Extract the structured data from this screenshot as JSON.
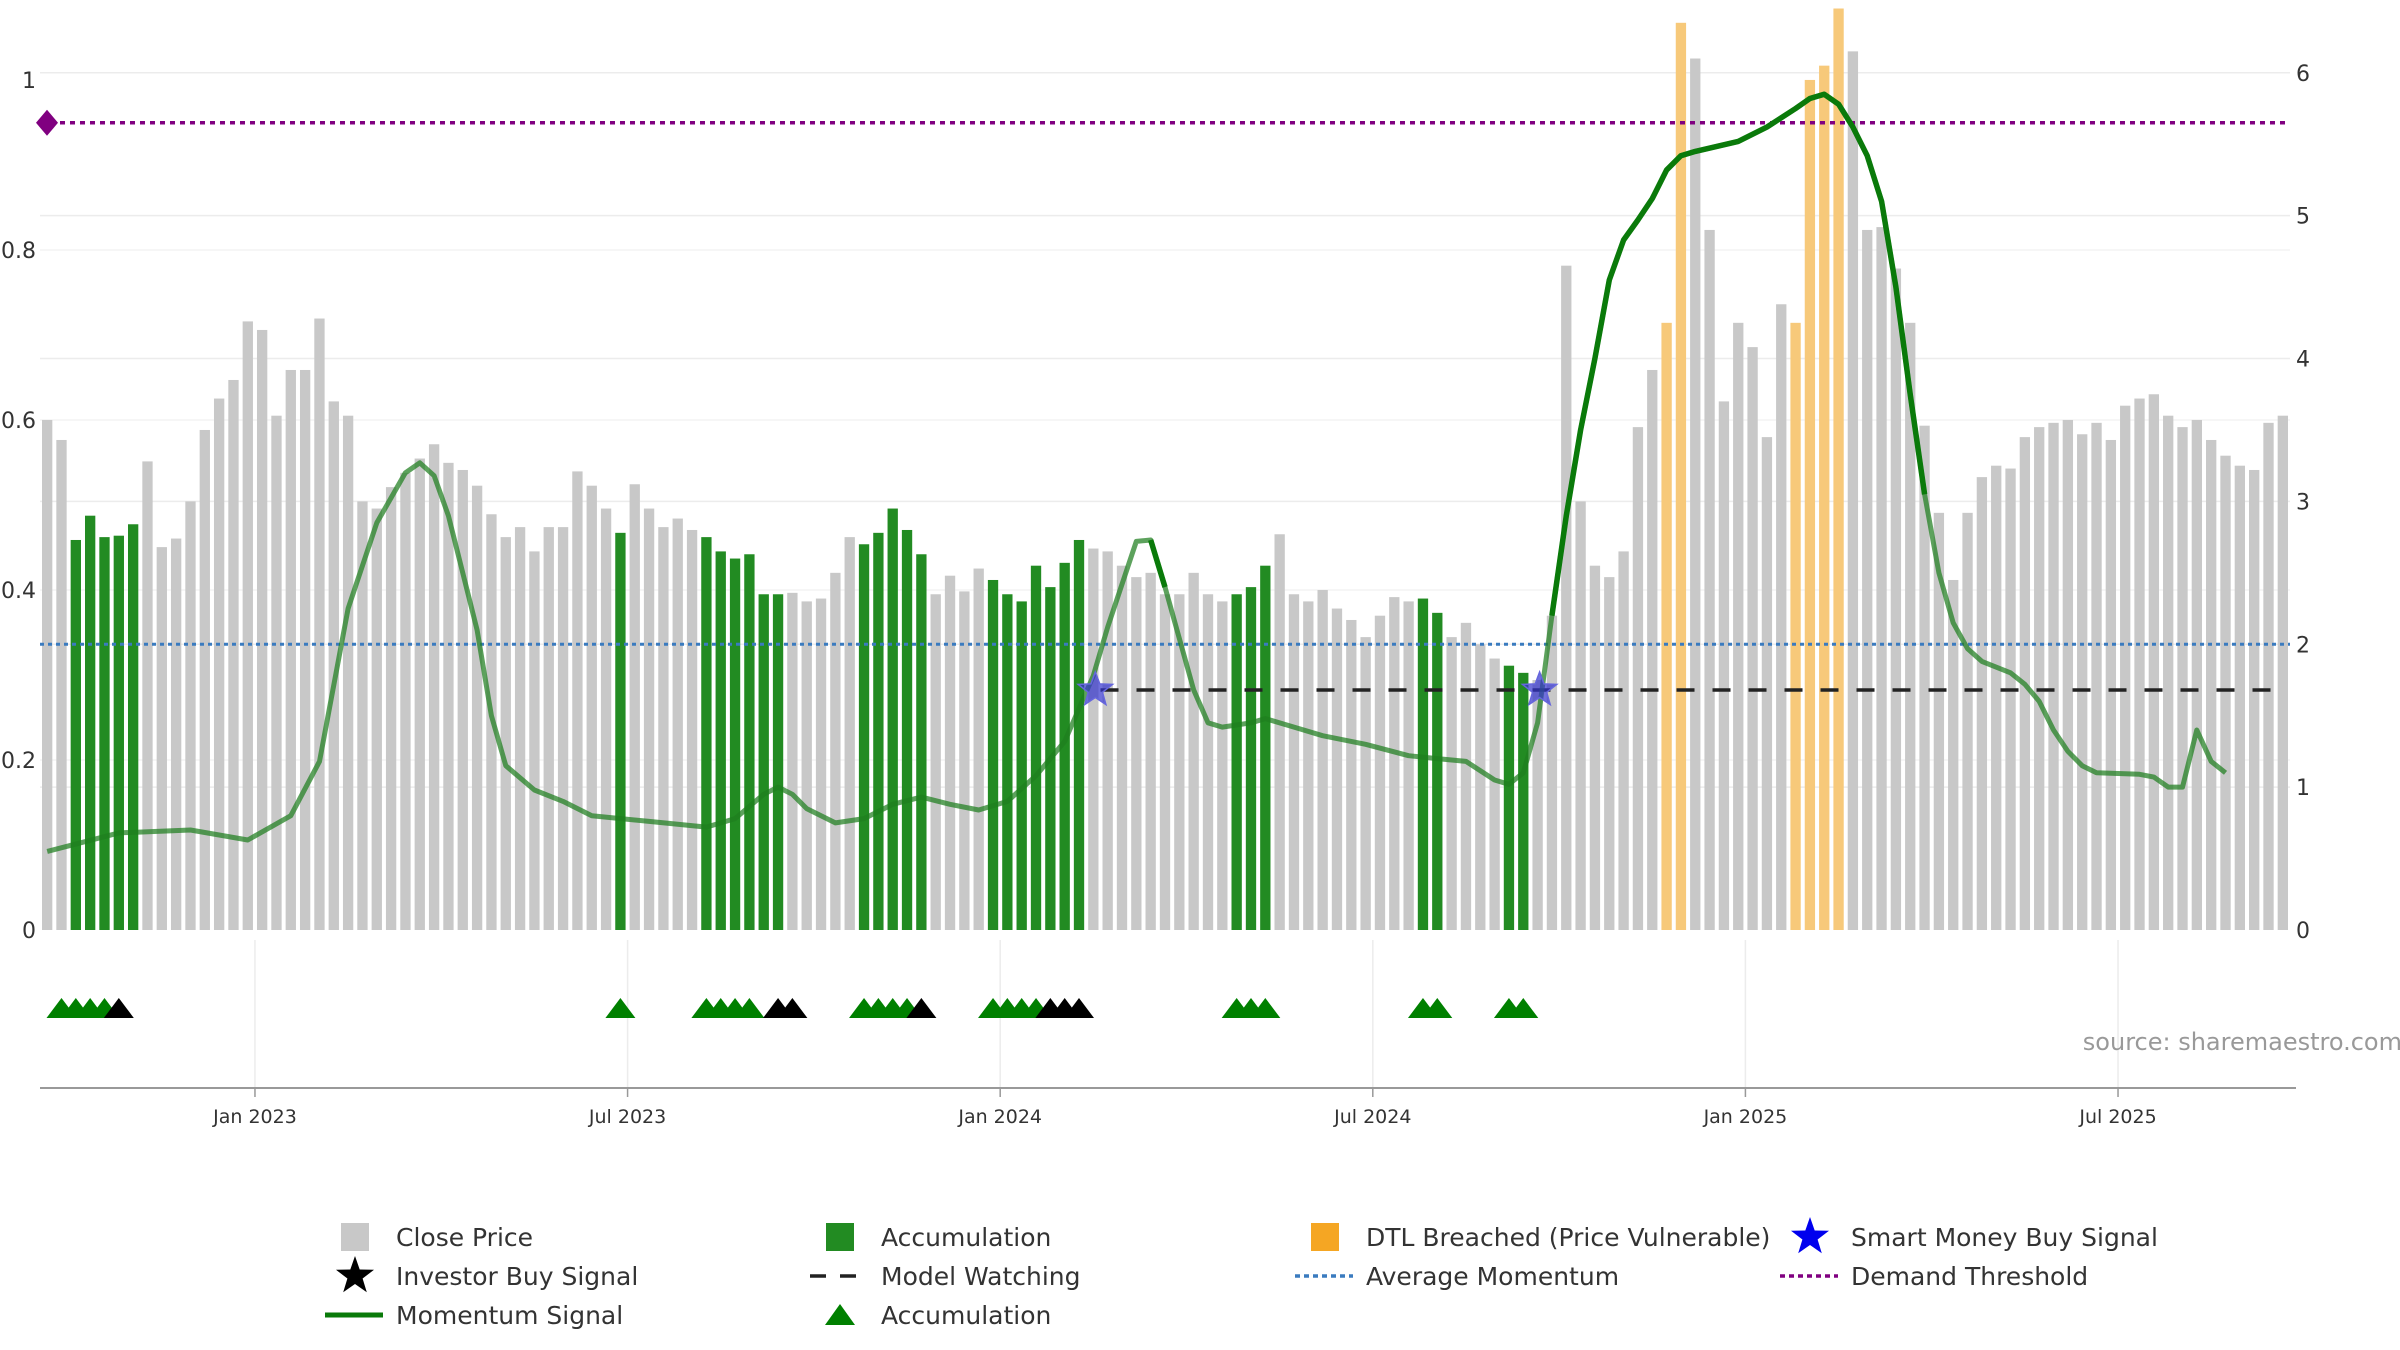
{
  "source_text": "source: sharemaestro.com",
  "chart_data": {
    "type": "bar",
    "left_axis": {
      "range": [
        0,
        1
      ],
      "ticks": [
        "0",
        "0.2",
        "0.4",
        "0.6",
        "0.8",
        "1"
      ]
    },
    "right_axis": {
      "range": [
        0,
        6.8
      ],
      "ticks": [
        "0",
        "1",
        "2",
        "3",
        "4",
        "5",
        "6"
      ]
    },
    "x_ticks": [
      "Jan 2023",
      "Jul 2023",
      "Jan 2024",
      "Jul 2024",
      "Jan 2025",
      "Jul 2025"
    ],
    "x_tick_weeks": [
      14.5,
      40.5,
      66.5,
      92.5,
      118.5,
      144.5
    ],
    "close_price": [
      3.57,
      3.43,
      2.73,
      2.9,
      2.75,
      2.76,
      2.84,
      3.28,
      2.68,
      2.74,
      3.0,
      3.5,
      3.72,
      3.85,
      4.26,
      4.2,
      3.6,
      3.92,
      3.92,
      4.28,
      3.7,
      3.6,
      3.0,
      2.95,
      3.1,
      3.2,
      3.3,
      3.4,
      3.27,
      3.22,
      3.11,
      2.91,
      2.75,
      2.82,
      2.65,
      2.82,
      2.82,
      3.21,
      3.11,
      2.95,
      2.78,
      3.12,
      2.95,
      2.82,
      2.88,
      2.8,
      2.75,
      2.65,
      2.6,
      2.63,
      2.35,
      2.35,
      2.36,
      2.3,
      2.32,
      2.5,
      2.75,
      2.7,
      2.78,
      2.95,
      2.8,
      2.63,
      2.35,
      2.48,
      2.37,
      2.53,
      2.45,
      2.35,
      2.3,
      2.55,
      2.4,
      2.57,
      2.73,
      2.67,
      2.65,
      2.55,
      2.47,
      2.5,
      2.35,
      2.35,
      2.5,
      2.35,
      2.3,
      2.35,
      2.4,
      2.55,
      2.77,
      2.35,
      2.3,
      2.38,
      2.25,
      2.17,
      2.05,
      2.2,
      2.33,
      2.3,
      2.32,
      2.22,
      2.05,
      2.15,
      2.0,
      1.9,
      1.85,
      1.8,
      1.75,
      2.2,
      4.65,
      3.0,
      2.55,
      2.47,
      2.65,
      3.52,
      3.92,
      4.25,
      6.35,
      6.1,
      4.9,
      3.7,
      4.25,
      4.08,
      3.45,
      4.38,
      4.25,
      5.95,
      6.05,
      6.45,
      6.15,
      4.9,
      4.92,
      4.63,
      4.25,
      3.53,
      2.92,
      2.45,
      2.92,
      3.17,
      3.25,
      3.23,
      3.45,
      3.52,
      3.55,
      3.57,
      3.47,
      3.55,
      3.43,
      3.67,
      3.72,
      3.75,
      3.6,
      3.52,
      3.57,
      3.43,
      3.32,
      3.25,
      3.22,
      3.55,
      3.6
    ],
    "accumulation_weeks": [
      2,
      3,
      4,
      5,
      6,
      40,
      46,
      47,
      48,
      49,
      50,
      51,
      57,
      58,
      59,
      60,
      61,
      66,
      67,
      68,
      69,
      70,
      71,
      72,
      83,
      84,
      85,
      96,
      97,
      102,
      103
    ],
    "dtl_breached_weeks": [
      113,
      114,
      122,
      123,
      124,
      125
    ],
    "momentum_signal": [
      [
        0,
        0.55
      ],
      [
        5,
        0.68
      ],
      [
        10,
        0.7
      ],
      [
        14,
        0.63
      ],
      [
        17,
        0.8
      ],
      [
        19,
        1.18
      ],
      [
        21,
        2.25
      ],
      [
        23,
        2.85
      ],
      [
        25,
        3.2
      ],
      [
        26,
        3.27
      ],
      [
        27,
        3.18
      ],
      [
        28,
        2.9
      ],
      [
        30,
        2.1
      ],
      [
        31,
        1.5
      ],
      [
        32,
        1.15
      ],
      [
        34,
        0.98
      ],
      [
        36,
        0.9
      ],
      [
        38,
        0.8
      ],
      [
        42,
        0.76
      ],
      [
        46,
        0.72
      ],
      [
        48,
        0.78
      ],
      [
        50,
        0.95
      ],
      [
        51,
        1.0
      ],
      [
        52,
        0.95
      ],
      [
        53,
        0.85
      ],
      [
        55,
        0.75
      ],
      [
        57,
        0.78
      ],
      [
        59,
        0.88
      ],
      [
        61,
        0.93
      ],
      [
        63,
        0.88
      ],
      [
        65,
        0.84
      ],
      [
        67,
        0.9
      ],
      [
        69,
        1.08
      ],
      [
        71,
        1.32
      ],
      [
        73,
        1.78
      ],
      [
        74,
        2.12
      ],
      [
        76,
        2.72
      ],
      [
        77,
        2.73
      ],
      [
        78,
        2.4
      ],
      [
        80,
        1.68
      ],
      [
        81,
        1.45
      ],
      [
        82,
        1.42
      ],
      [
        84,
        1.45
      ],
      [
        85,
        1.48
      ],
      [
        87,
        1.42
      ],
      [
        89,
        1.36
      ],
      [
        92,
        1.3
      ],
      [
        95,
        1.22
      ],
      [
        97,
        1.2
      ],
      [
        99,
        1.18
      ],
      [
        101,
        1.05
      ],
      [
        102,
        1.02
      ],
      [
        103,
        1.1
      ],
      [
        104,
        1.45
      ],
      [
        105,
        2.2
      ],
      [
        106,
        2.9
      ],
      [
        107,
        3.5
      ],
      [
        108,
        4.0
      ],
      [
        109,
        4.55
      ],
      [
        110,
        4.83
      ],
      [
        111,
        4.97
      ],
      [
        112,
        5.12
      ],
      [
        113,
        5.32
      ],
      [
        114,
        5.42
      ],
      [
        115,
        5.45
      ],
      [
        118,
        5.52
      ],
      [
        120,
        5.62
      ],
      [
        122,
        5.75
      ],
      [
        123,
        5.82
      ],
      [
        124,
        5.85
      ],
      [
        125,
        5.78
      ],
      [
        126,
        5.62
      ],
      [
        127,
        5.42
      ],
      [
        128,
        5.1
      ],
      [
        129,
        4.5
      ],
      [
        130,
        3.75
      ],
      [
        131,
        3.05
      ],
      [
        132,
        2.5
      ],
      [
        133,
        2.15
      ],
      [
        134,
        1.97
      ],
      [
        135,
        1.88
      ],
      [
        137,
        1.8
      ],
      [
        138,
        1.72
      ],
      [
        139,
        1.6
      ],
      [
        140,
        1.4
      ],
      [
        141,
        1.25
      ],
      [
        142,
        1.15
      ],
      [
        143,
        1.1
      ],
      [
        146,
        1.09
      ],
      [
        147,
        1.07
      ],
      [
        148,
        1.0
      ],
      [
        149,
        1.0
      ],
      [
        150,
        1.4
      ],
      [
        151,
        1.18
      ],
      [
        152,
        1.1
      ]
    ],
    "momentum_highlight_ranges": [
      [
        77,
        78
      ],
      [
        105,
        131
      ]
    ],
    "average_momentum": 2.0,
    "demand_threshold": 5.65,
    "model_watching": {
      "from_week": 73.5,
      "to_week": 153,
      "level": 1.68
    },
    "smart_money_buy_weeks": [
      73,
      104
    ],
    "smart_money_buy_level": 1.68,
    "accumulation_markers": [
      1,
      2,
      3,
      4,
      40,
      46,
      47,
      48,
      49,
      57,
      58,
      59,
      60,
      66,
      67,
      68,
      69,
      83,
      84,
      85,
      96,
      97,
      102,
      103
    ],
    "investor_buy_markers": [
      5,
      51,
      52,
      61,
      70,
      71,
      72
    ],
    "legend": [
      {
        "label": "Close Price",
        "symbol": "gray-square"
      },
      {
        "label": "Accumulation",
        "symbol": "green-square"
      },
      {
        "label": "DTL Breached (Price Vulnerable)",
        "symbol": "orange-square"
      },
      {
        "label": "Smart Money Buy Signal",
        "symbol": "blue-star"
      },
      {
        "label": "Investor Buy Signal",
        "symbol": "black-star"
      },
      {
        "label": "Model Watching",
        "symbol": "black-dash"
      },
      {
        "label": "Average Momentum",
        "symbol": "blue-dotted"
      },
      {
        "label": "Demand Threshold",
        "symbol": "purple-dotted"
      },
      {
        "label": "Momentum Signal",
        "symbol": "green-line"
      },
      {
        "label": "Accumulation",
        "symbol": "green-triangle"
      }
    ],
    "colors": {
      "close_price": "#c8c8c8",
      "accumulation": "#228b22",
      "dtl_breached": "#f7c97a",
      "momentum": "#1e7e1e",
      "average_momentum": "#3a7bbf",
      "demand_threshold": "#800080",
      "smart_money": "#3333cc",
      "investor_buy": "#000000",
      "model_watching": "#222222",
      "triangle_accumulation": "#008000"
    }
  }
}
